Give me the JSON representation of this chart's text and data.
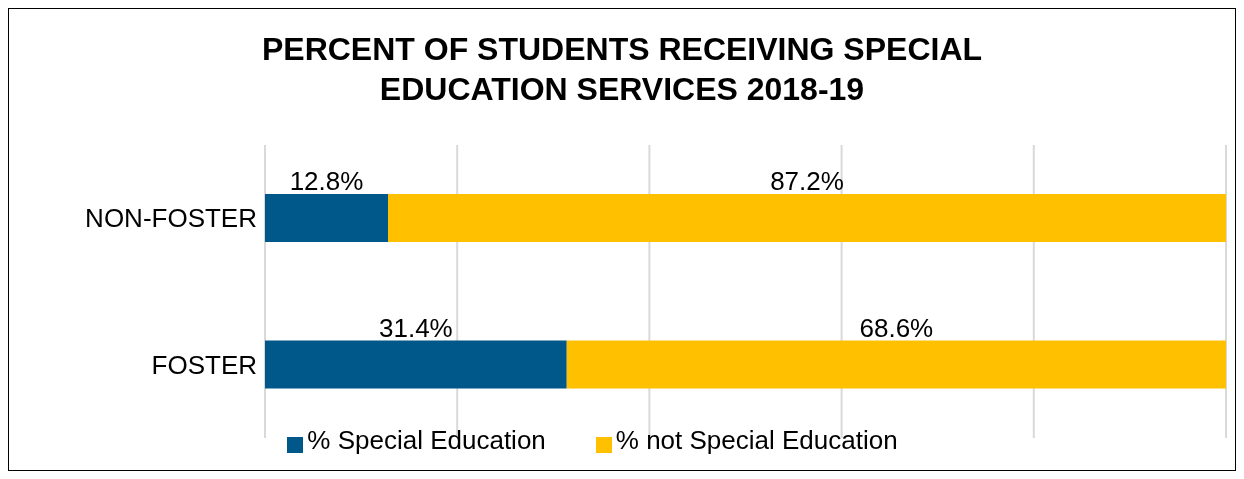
{
  "chart_data": {
    "type": "bar",
    "orientation": "horizontal",
    "stacked": true,
    "title": "PERCENT OF STUDENTS RECEIVING SPECIAL EDUCATION SERVICES 2018-19",
    "categories": [
      "NON-FOSTER",
      "FOSTER"
    ],
    "series": [
      {
        "name": "% Special Education",
        "color": "#00578a",
        "values": [
          12.8,
          31.4
        ],
        "value_labels": [
          "12.8%",
          "31.4%"
        ]
      },
      {
        "name": "% not Special Education",
        "color": "#ffc000",
        "values": [
          87.2,
          68.6
        ],
        "value_labels": [
          "87.2%",
          "68.6%"
        ]
      }
    ],
    "xlim": [
      0,
      100
    ],
    "xticks": [
      {
        "value": 0,
        "label": null
      },
      {
        "value": 20,
        "label": null
      },
      {
        "value": 40,
        "label": null
      },
      {
        "value": 60,
        "label": null
      },
      {
        "value": 80,
        "label": null
      },
      {
        "value": 100,
        "label": null
      }
    ],
    "tick_labels": "y",
    "grid": "x",
    "legend": "bottom"
  }
}
